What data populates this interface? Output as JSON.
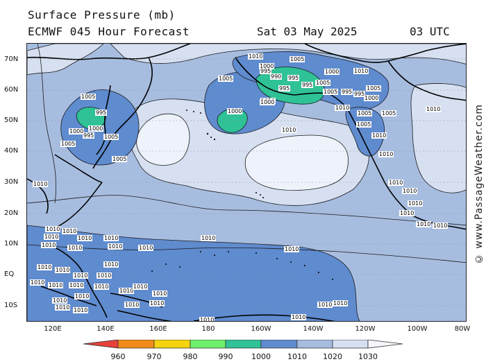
{
  "header": {
    "title_line1": "Surface Pressure (mb)",
    "title_line2": "ECMWF 045 Hour Forecast",
    "date": "Sat 03 May 2025",
    "time": "03 UTC"
  },
  "map": {
    "lat_labels": [
      "70N",
      "60N",
      "50N",
      "40N",
      "30N",
      "20N",
      "10N",
      "EQ",
      "10S"
    ],
    "lon_labels": [
      "120E",
      "140E",
      "160E",
      "180",
      "160W",
      "140W",
      "120W",
      "100W",
      "80W"
    ],
    "watermark": "© www.PassageWeather.com",
    "colors": {
      "ocean_base": "#a7bde0",
      "p1010_1020": "#a7bde0",
      "p1020_1030": "#d6e0f1",
      "p1030_plus": "#eef2fa",
      "p1000_1010": "#5f8bcf",
      "p990_1000": "#2fc296",
      "land_line": "#000000",
      "contour": "#1a1a1a"
    },
    "isobar_labels": [
      "1010",
      "1000",
      "1005",
      "1005",
      "1010",
      "995",
      "990",
      "995",
      "1000",
      "1010",
      "1005",
      "995",
      "995",
      "1005",
      "995",
      "1005",
      "995",
      "1000",
      "1010",
      "1000",
      "1005",
      "1005",
      "1010",
      "1000",
      "1010",
      "1010",
      "1010",
      "1005",
      "1005",
      "995",
      "1000",
      "1000",
      "995",
      "1005",
      "1005",
      "1005",
      "1010",
      "1010",
      "1010",
      "1010",
      "1010",
      "1010",
      "1010",
      "1010",
      "1010",
      "1010",
      "1010",
      "1010",
      "1010",
      "1010",
      "1010",
      "1010",
      "1010",
      "1010",
      "1010",
      "1010",
      "1010",
      "1010",
      "1010",
      "1010",
      "1010",
      "1010",
      "1010",
      "1010",
      "1010",
      "1010",
      "1010",
      "1010",
      "1010",
      "1010",
      "1010",
      "1010",
      "1010",
      "1010",
      "1010",
      "1010"
    ]
  },
  "colorbar": {
    "levels": [
      "960",
      "970",
      "980",
      "990",
      "1000",
      "1010",
      "1020",
      "1030"
    ],
    "colors": [
      "#e8413a",
      "#f08a1a",
      "#f5d40f",
      "#6ef06a",
      "#2fc296",
      "#5f8bcf",
      "#a7bde0",
      "#d6e0f1",
      "#f4f6fb"
    ]
  }
}
